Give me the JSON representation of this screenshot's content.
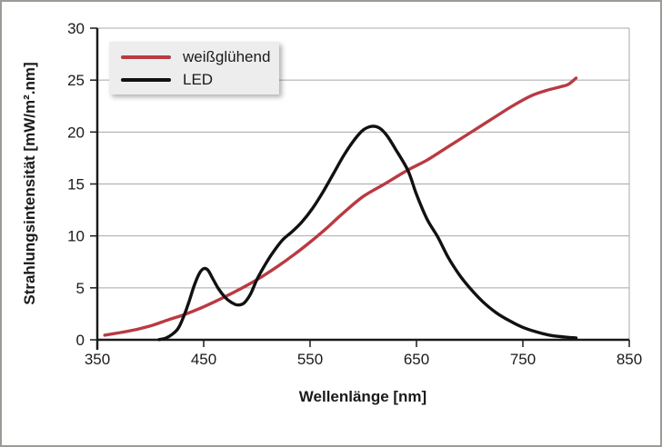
{
  "figure": {
    "background": "#ffffff",
    "border_color": "#9c9c96"
  },
  "chart_data": {
    "type": "line",
    "title": "",
    "xlabel": "Wellenlänge [nm]",
    "ylabel": "Strahlungsintensität [mW/m².nm]",
    "xlim": [
      350,
      850
    ],
    "ylim": [
      0,
      30
    ],
    "x_ticks": [
      350,
      450,
      550,
      650,
      750,
      850
    ],
    "y_ticks": [
      0,
      5,
      10,
      15,
      20,
      25,
      30
    ],
    "grid": "horizontal",
    "grid_color": "#a8a8a8",
    "axis_color": "#1a1a1a",
    "legend_position": "top-left",
    "series": [
      {
        "name": "weißglühend",
        "color": "#b93a42",
        "points": [
          [
            357,
            0.45
          ],
          [
            372,
            0.7
          ],
          [
            387,
            1.0
          ],
          [
            402,
            1.4
          ],
          [
            416,
            1.9
          ],
          [
            431,
            2.4
          ],
          [
            446,
            3.0
          ],
          [
            460,
            3.65
          ],
          [
            475,
            4.4
          ],
          [
            490,
            5.2
          ],
          [
            505,
            6.1
          ],
          [
            520,
            7.1
          ],
          [
            535,
            8.2
          ],
          [
            550,
            9.4
          ],
          [
            565,
            10.7
          ],
          [
            580,
            12.1
          ],
          [
            600,
            13.8
          ],
          [
            620,
            15.0
          ],
          [
            642,
            16.35
          ],
          [
            660,
            17.3
          ],
          [
            680,
            18.6
          ],
          [
            700,
            19.9
          ],
          [
            720,
            21.2
          ],
          [
            740,
            22.5
          ],
          [
            758,
            23.5
          ],
          [
            772,
            24.0
          ],
          [
            785,
            24.35
          ],
          [
            793,
            24.6
          ],
          [
            800,
            25.2
          ]
        ]
      },
      {
        "name": "LED",
        "color": "#111111",
        "points": [
          [
            408,
            0.02
          ],
          [
            414,
            0.15
          ],
          [
            420,
            0.5
          ],
          [
            426,
            1.1
          ],
          [
            431,
            2.2
          ],
          [
            436,
            3.6
          ],
          [
            441,
            5.2
          ],
          [
            446,
            6.4
          ],
          [
            450,
            6.85
          ],
          [
            454,
            6.7
          ],
          [
            459,
            5.8
          ],
          [
            464,
            4.9
          ],
          [
            470,
            4.1
          ],
          [
            476,
            3.6
          ],
          [
            482,
            3.35
          ],
          [
            488,
            3.55
          ],
          [
            494,
            4.4
          ],
          [
            500,
            5.8
          ],
          [
            507,
            7.1
          ],
          [
            515,
            8.4
          ],
          [
            524,
            9.6
          ],
          [
            533,
            10.4
          ],
          [
            542,
            11.3
          ],
          [
            552,
            12.6
          ],
          [
            562,
            14.2
          ],
          [
            572,
            16.0
          ],
          [
            582,
            17.8
          ],
          [
            592,
            19.3
          ],
          [
            600,
            20.2
          ],
          [
            608,
            20.55
          ],
          [
            615,
            20.4
          ],
          [
            622,
            19.7
          ],
          [
            630,
            18.4
          ],
          [
            642,
            16.3
          ],
          [
            650,
            14.0
          ],
          [
            660,
            11.6
          ],
          [
            670,
            9.9
          ],
          [
            680,
            7.9
          ],
          [
            690,
            6.3
          ],
          [
            700,
            5.0
          ],
          [
            712,
            3.7
          ],
          [
            725,
            2.6
          ],
          [
            738,
            1.8
          ],
          [
            750,
            1.2
          ],
          [
            763,
            0.75
          ],
          [
            775,
            0.45
          ],
          [
            788,
            0.28
          ],
          [
            800,
            0.18
          ]
        ]
      }
    ]
  }
}
